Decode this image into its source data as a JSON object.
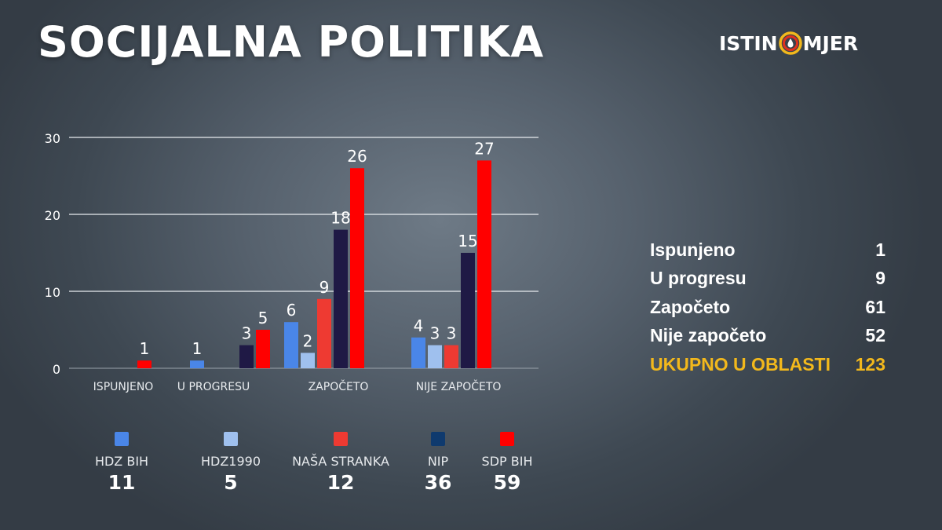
{
  "header": {
    "title": "SOCIJALNA POLITIKA"
  },
  "brand": {
    "left": "ISTIN",
    "right": "MJER"
  },
  "colors": {
    "hdz_bih": "#4a86e8",
    "hdz1990": "#9fc0ee",
    "nasa_stranka": "#ee3a32",
    "nip": "#1f1945",
    "sdp_bih": "#ff0000",
    "nip_swatch": "#0f3a6e",
    "highlight": "#f2b81c"
  },
  "chart_data": {
    "type": "bar",
    "categories": [
      "ISPUNJENO",
      "U PROGRESU",
      "ZAPOČETO",
      "NIJE ZAPOČETO"
    ],
    "series": [
      {
        "name": "HDZ BIH",
        "values": [
          0,
          1,
          6,
          4
        ]
      },
      {
        "name": "HDZ1990",
        "values": [
          0,
          0,
          2,
          3
        ]
      },
      {
        "name": "NAŠA STRANKA",
        "values": [
          0,
          0,
          9,
          3
        ]
      },
      {
        "name": "NIP",
        "values": [
          0,
          3,
          18,
          15
        ]
      },
      {
        "name": "SDP BIH",
        "values": [
          1,
          5,
          26,
          27
        ]
      }
    ],
    "yticks": [
      "0",
      "10",
      "20",
      "30"
    ],
    "ylim": [
      0,
      30
    ],
    "grid": true,
    "data_labels": true
  },
  "legend": [
    {
      "name": "HDZ BIH",
      "total": "11"
    },
    {
      "name": "HDZ1990",
      "total": "5"
    },
    {
      "name": "NAŠA STRANKA",
      "total": "12"
    },
    {
      "name": "NIP",
      "total": "36"
    },
    {
      "name": "SDP BIH",
      "total": "59"
    }
  ],
  "summary": [
    {
      "label": "Ispunjeno",
      "value": "1"
    },
    {
      "label": "U progresu",
      "value": "9"
    },
    {
      "label": "Započeto",
      "value": "61"
    },
    {
      "label": "Nije započeto",
      "value": "52"
    },
    {
      "label": "UKUPNO U OBLASTI",
      "value": "123"
    }
  ]
}
